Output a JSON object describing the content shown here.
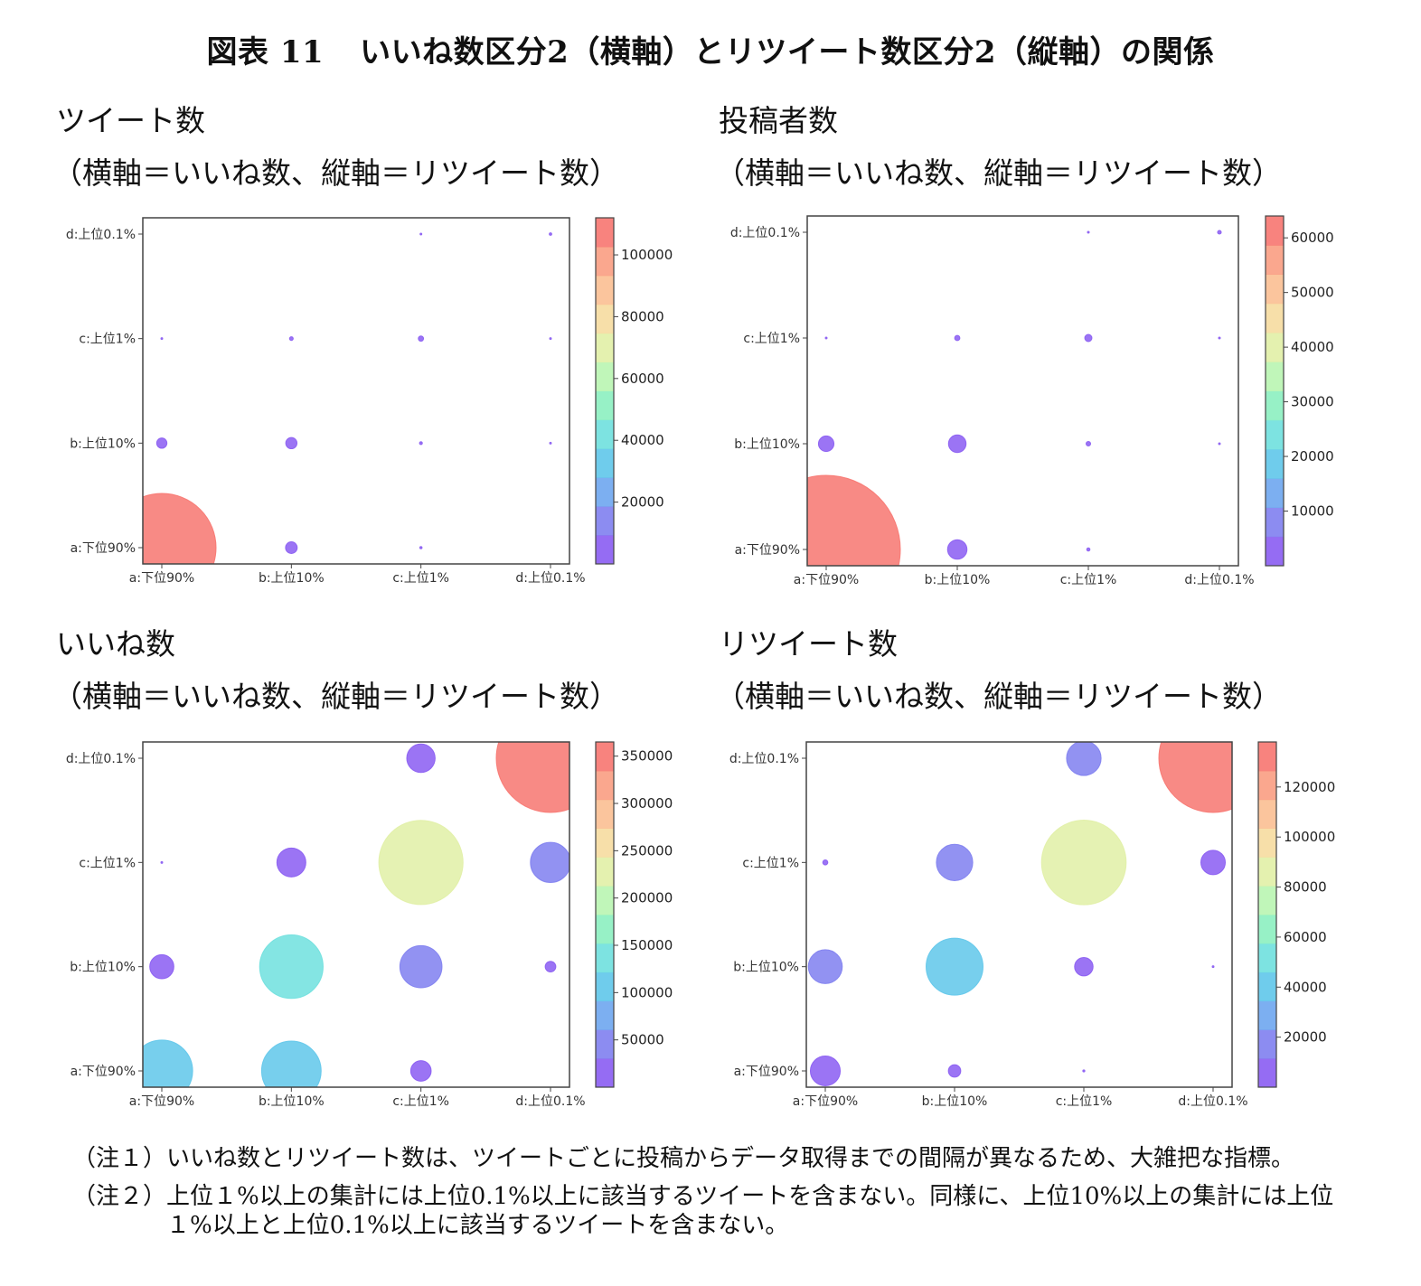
{
  "figure": {
    "title_num": "図表 11",
    "title_text": "いいね数区分2（横軸）とリツイート数区分2（縦軸）の関係"
  },
  "notes": [
    {
      "label": "（注１）",
      "text": "いいね数とリツイート数は、ツイートごとに投稿からデータ取得までの間隔が異なるため、大雑把な指標。"
    },
    {
      "label": "（注２）",
      "text": "上位１%以上の集計には上位0.1%以上に該当するツイートを含まない。同様に、上位10%以上の集計には上位１%以上と上位0.1%以上に該当するツイートを含まない。"
    }
  ],
  "colors": {
    "palette": [
      "#8a5cf2",
      "#7f7ff0",
      "#6ea6f0",
      "#5fc7ea",
      "#6fe0de",
      "#8cf0c0",
      "#b9f5b1",
      "#e1f0a6",
      "#f6dca0",
      "#fbbf92",
      "#fa9d82",
      "#f77670"
    ]
  },
  "chart_data": [
    {
      "type": "scatter",
      "title": "ツイート数",
      "subtitle": "（横軸＝いいね数、縦軸＝リツイート数）",
      "categories_x": [
        "a:下位90%",
        "b:上位10%",
        "c:上位1%",
        "d:上位0.1%"
      ],
      "categories_y": [
        "a:下位90%",
        "b:上位10%",
        "c:上位1%",
        "d:上位0.1%"
      ],
      "colorbar_max": 112000,
      "colorbar_ticks": [
        "20000",
        "40000",
        "60000",
        "80000",
        "100000"
      ],
      "points": [
        {
          "x": "a:下位90%",
          "y": "a:下位90%",
          "value": 112000
        },
        {
          "x": "b:上位10%",
          "y": "a:下位90%",
          "value": 1300
        },
        {
          "x": "c:上位1%",
          "y": "a:下位90%",
          "value": 50
        },
        {
          "x": "a:下位90%",
          "y": "b:上位10%",
          "value": 1000
        },
        {
          "x": "b:上位10%",
          "y": "b:上位10%",
          "value": 1200
        },
        {
          "x": "c:上位1%",
          "y": "b:上位10%",
          "value": 80
        },
        {
          "x": "d:上位0.1%",
          "y": "b:上位10%",
          "value": 2
        },
        {
          "x": "a:下位90%",
          "y": "c:上位1%",
          "value": 5
        },
        {
          "x": "b:上位10%",
          "y": "c:上位1%",
          "value": 130
        },
        {
          "x": "c:上位1%",
          "y": "c:上位1%",
          "value": 260
        },
        {
          "x": "d:上位0.1%",
          "y": "c:上位1%",
          "value": 15
        },
        {
          "x": "c:上位1%",
          "y": "d:上位0.1%",
          "value": 15
        },
        {
          "x": "d:上位0.1%",
          "y": "d:上位0.1%",
          "value": 60
        }
      ]
    },
    {
      "type": "scatter",
      "title": "投稿者数",
      "subtitle": "（横軸＝いいね数、縦軸＝リツイート数）",
      "categories_x": [
        "a:下位90%",
        "b:上位10%",
        "c:上位1%",
        "d:上位0.1%"
      ],
      "categories_y": [
        "a:下位90%",
        "b:上位10%",
        "c:上位1%",
        "d:上位0.1%"
      ],
      "colorbar_max": 64000,
      "colorbar_ticks": [
        "10000",
        "20000",
        "30000",
        "40000",
        "50000",
        "60000"
      ],
      "points": [
        {
          "x": "a:下位90%",
          "y": "a:下位90%",
          "value": 64000
        },
        {
          "x": "b:上位10%",
          "y": "a:下位90%",
          "value": 1100
        },
        {
          "x": "c:上位1%",
          "y": "a:下位90%",
          "value": 30
        },
        {
          "x": "a:下位90%",
          "y": "b:上位10%",
          "value": 700
        },
        {
          "x": "b:上位10%",
          "y": "b:上位10%",
          "value": 900
        },
        {
          "x": "c:上位1%",
          "y": "b:上位10%",
          "value": 60
        },
        {
          "x": "d:上位0.1%",
          "y": "b:上位10%",
          "value": 2
        },
        {
          "x": "a:下位90%",
          "y": "c:上位1%",
          "value": 5
        },
        {
          "x": "b:上位10%",
          "y": "c:上位1%",
          "value": 80
        },
        {
          "x": "c:上位1%",
          "y": "c:上位1%",
          "value": 150
        },
        {
          "x": "d:上位0.1%",
          "y": "c:上位1%",
          "value": 10
        },
        {
          "x": "c:上位1%",
          "y": "d:上位0.1%",
          "value": 10
        },
        {
          "x": "d:上位0.1%",
          "y": "d:上位0.1%",
          "value": 40
        }
      ]
    },
    {
      "type": "scatter",
      "title": "いいね数",
      "subtitle": "（横軸＝いいね数、縦軸＝リツイート数）",
      "categories_x": [
        "a:下位90%",
        "b:上位10%",
        "c:上位1%",
        "d:上位0.1%"
      ],
      "categories_y": [
        "a:下位90%",
        "b:上位10%",
        "c:上位1%",
        "d:上位0.1%"
      ],
      "colorbar_max": 365000,
      "colorbar_ticks": [
        "50000",
        "100000",
        "150000",
        "200000",
        "250000",
        "300000",
        "350000"
      ],
      "points": [
        {
          "x": "a:下位90%",
          "y": "a:下位90%",
          "value": 118000
        },
        {
          "x": "b:上位10%",
          "y": "a:下位90%",
          "value": 110000
        },
        {
          "x": "c:上位1%",
          "y": "a:下位90%",
          "value": 13000
        },
        {
          "x": "a:下位90%",
          "y": "b:上位10%",
          "value": 18000
        },
        {
          "x": "b:上位10%",
          "y": "b:上位10%",
          "value": 125000
        },
        {
          "x": "c:上位1%",
          "y": "b:上位10%",
          "value": 55000
        },
        {
          "x": "d:上位0.1%",
          "y": "b:上位10%",
          "value": 3500
        },
        {
          "x": "a:下位90%",
          "y": "c:上位1%",
          "value": 100
        },
        {
          "x": "b:上位10%",
          "y": "c:上位1%",
          "value": 26000
        },
        {
          "x": "c:上位1%",
          "y": "c:上位1%",
          "value": 220000
        },
        {
          "x": "d:上位0.1%",
          "y": "c:上位1%",
          "value": 50000
        },
        {
          "x": "c:上位1%",
          "y": "d:上位0.1%",
          "value": 25000
        },
        {
          "x": "d:上位0.1%",
          "y": "d:上位0.1%",
          "value": 365000
        }
      ]
    },
    {
      "type": "scatter",
      "title": "リツイート数",
      "subtitle": "（横軸＝いいね数、縦軸＝リツイート数）",
      "categories_x": [
        "a:下位90%",
        "b:上位10%",
        "c:上位1%",
        "d:上位0.1%"
      ],
      "categories_y": [
        "a:下位90%",
        "b:上位10%",
        "c:上位1%",
        "d:上位0.1%"
      ],
      "colorbar_max": 138000,
      "colorbar_ticks": [
        "20000",
        "40000",
        "60000",
        "80000",
        "100000",
        "120000"
      ],
      "points": [
        {
          "x": "a:下位90%",
          "y": "a:下位90%",
          "value": 10500
        },
        {
          "x": "b:上位10%",
          "y": "a:下位90%",
          "value": 1800
        },
        {
          "x": "c:上位1%",
          "y": "a:下位90%",
          "value": 50
        },
        {
          "x": "a:下位90%",
          "y": "b:上位10%",
          "value": 13500
        },
        {
          "x": "b:上位10%",
          "y": "b:上位10%",
          "value": 38000
        },
        {
          "x": "c:上位1%",
          "y": "b:上位10%",
          "value": 4000
        },
        {
          "x": "d:上位0.1%",
          "y": "b:上位10%",
          "value": 30
        },
        {
          "x": "a:下位90%",
          "y": "c:上位1%",
          "value": 300
        },
        {
          "x": "b:上位10%",
          "y": "c:上位1%",
          "value": 15500
        },
        {
          "x": "c:上位1%",
          "y": "c:上位1%",
          "value": 84000
        },
        {
          "x": "d:上位0.1%",
          "y": "c:上位1%",
          "value": 7000
        },
        {
          "x": "c:上位1%",
          "y": "d:上位0.1%",
          "value": 14000
        },
        {
          "x": "d:上位0.1%",
          "y": "d:上位0.1%",
          "value": 138000
        }
      ]
    }
  ]
}
